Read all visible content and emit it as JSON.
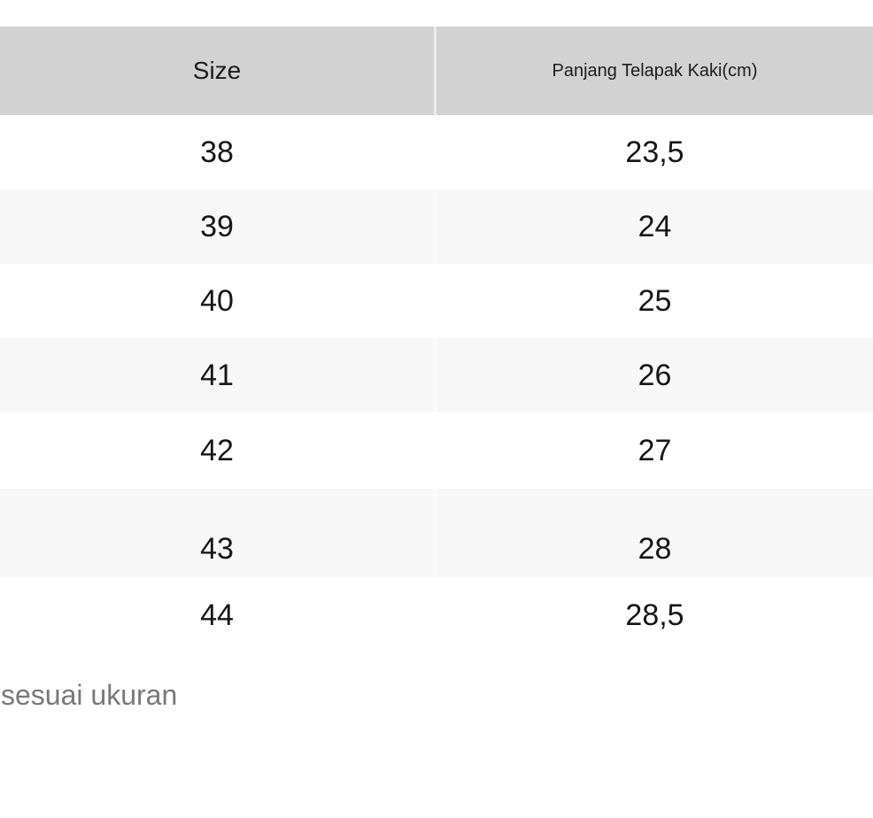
{
  "chart_data": {
    "type": "table",
    "columns": [
      "Size",
      "Panjang Telapak Kaki(cm)"
    ],
    "rows": [
      [
        "38",
        "23,5"
      ],
      [
        "39",
        "24"
      ],
      [
        "40",
        "25"
      ],
      [
        "41",
        "26"
      ],
      [
        "42",
        "27"
      ],
      [
        "43",
        "28"
      ],
      [
        "44",
        "28,5"
      ]
    ]
  },
  "note": "sesuai ukuran",
  "colors": {
    "header_bg": "#d2d2d2",
    "row_alt_bg": "#f7f7f7",
    "text": "#161616",
    "note_text": "#77787c"
  }
}
